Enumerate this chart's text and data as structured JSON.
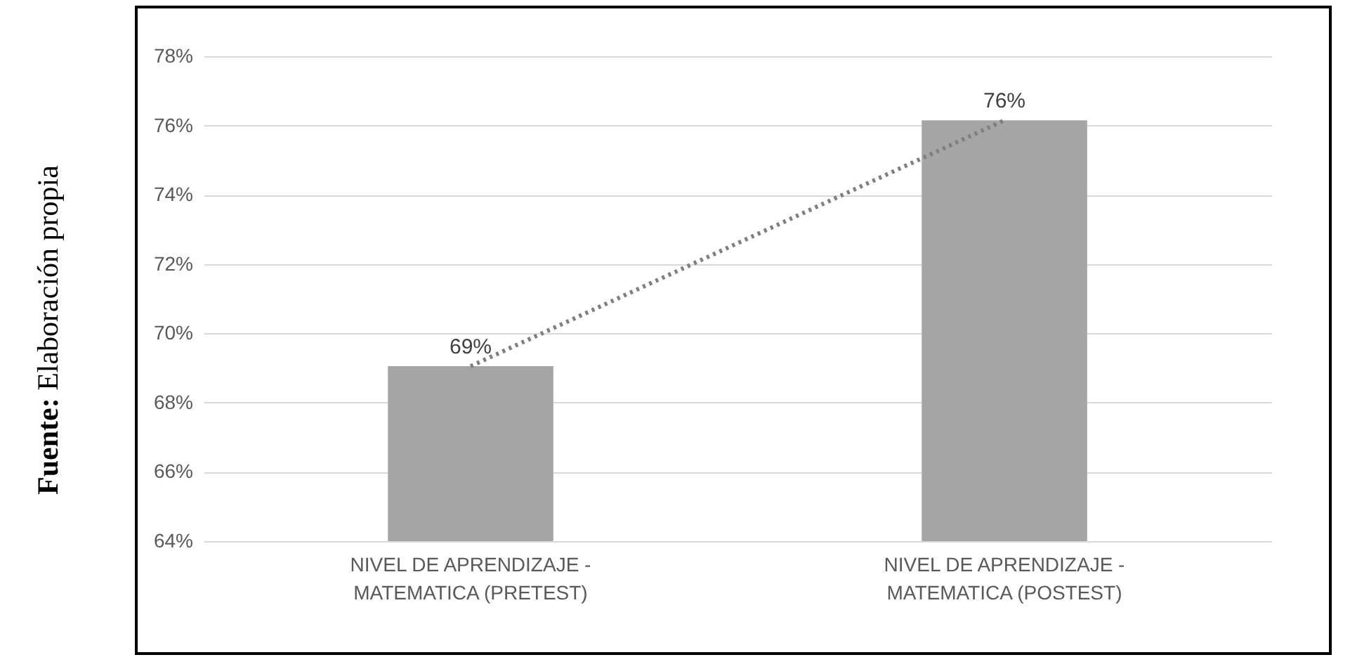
{
  "chart_data": {
    "type": "bar",
    "categories": [
      "NIVEL DE APRENDIZAJE - MATEMATICA (PRETEST)",
      "NIVEL DE APRENDIZAJE - MATEMATICA (POSTEST)"
    ],
    "series": [
      {
        "color": "#a5a5a5",
        "values": [
          69.05,
          76.15
        ],
        "value_labels": [
          "69%",
          "76%"
        ]
      },
      {
        "type": "line",
        "color": "#7f7f7f",
        "line_style": "dotted",
        "x": [
          "NIVEL DE APRENDIZAJE - MATEMATICA (PRETEST)",
          "NIVEL DE APRENDIZAJE - MATEMATICA (POSTEST)"
        ],
        "values": [
          69.05,
          76.15
        ]
      }
    ],
    "ylim": [
      64,
      78
    ],
    "yticks": [
      {
        "value": 64,
        "label": "64%"
      },
      {
        "value": 66,
        "label": "66%"
      },
      {
        "value": 68,
        "label": "68%"
      },
      {
        "value": 70,
        "label": "70%"
      },
      {
        "value": 72,
        "label": "72%"
      },
      {
        "value": 74,
        "label": "74%"
      },
      {
        "value": 76,
        "label": "76%"
      },
      {
        "value": 78,
        "label": "78%"
      }
    ],
    "grid": "y",
    "annotations": [
      "Fuente: Elaboración propia"
    ]
  }
}
